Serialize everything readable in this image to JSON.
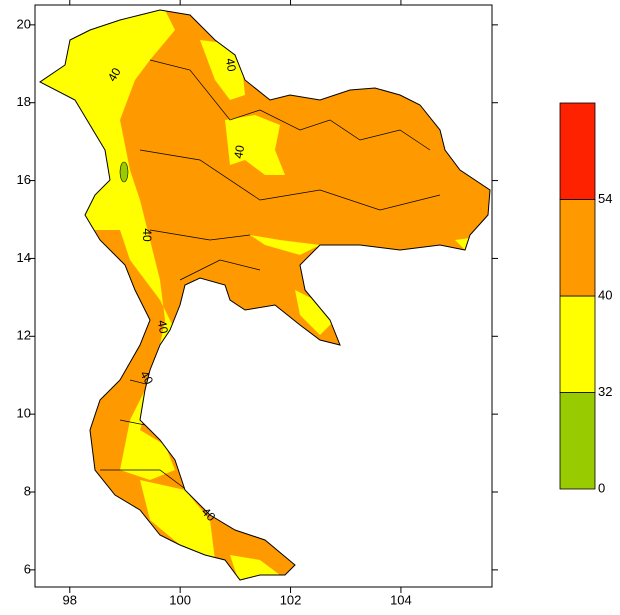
{
  "map": {
    "xlim": [
      97.37,
      105.65
    ],
    "ylim": [
      5.56,
      20.51
    ],
    "xticks": [
      98,
      100,
      102,
      104
    ],
    "yticks": [
      6,
      8,
      10,
      12,
      14,
      16,
      18,
      20
    ],
    "contour_labels": [
      "40",
      "40",
      "40",
      "40",
      "40",
      "40",
      "40"
    ],
    "legend": {
      "levels": [
        0,
        32,
        40,
        54
      ],
      "colors": [
        "#99cc00",
        "#ffff00",
        "#ff9900",
        "#ff2200"
      ]
    }
  }
}
